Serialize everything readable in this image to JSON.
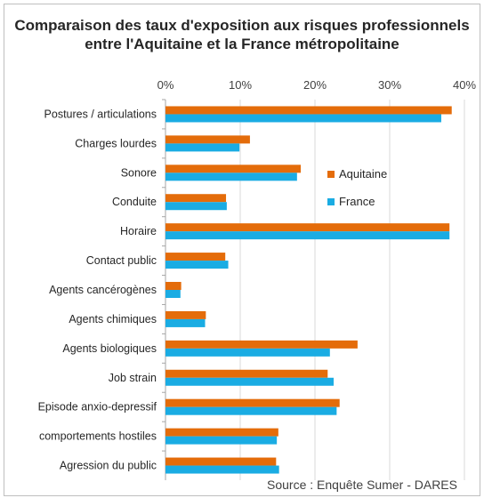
{
  "chart_data": {
    "type": "bar",
    "orientation": "horizontal",
    "title_line1": "Comparaison des taux d'exposition aux risques professionnels",
    "title_line2": "entre l'Aquitaine et la France métropolitaine",
    "categories": [
      "Postures / articulations",
      "Charges lourdes",
      "Sonore",
      "Conduite",
      "Horaire",
      "Contact public",
      "Agents cancérogènes",
      "Agents chimiques",
      "Agents biologiques",
      "Job strain",
      "Episode anxio-depressif",
      "comportements hostiles",
      "Agression du public"
    ],
    "series": [
      {
        "name": "Aquitaine",
        "color": "#E46C0A",
        "values": [
          38.3,
          11.3,
          18.1,
          8.1,
          38.0,
          8.0,
          2.1,
          5.4,
          25.7,
          21.7,
          23.3,
          15.1,
          14.8
        ]
      },
      {
        "name": "France",
        "color": "#1AACE3",
        "values": [
          36.9,
          9.9,
          17.6,
          8.2,
          38.0,
          8.4,
          2.0,
          5.3,
          22.0,
          22.5,
          22.9,
          14.9,
          15.2
        ]
      }
    ],
    "x_ticks": [
      "0%",
      "10%",
      "20%",
      "30%",
      "40%"
    ],
    "xlim": [
      0,
      40
    ],
    "grid": true,
    "legend_position": "right",
    "source": "Source : Enquête Sumer - DARES"
  }
}
